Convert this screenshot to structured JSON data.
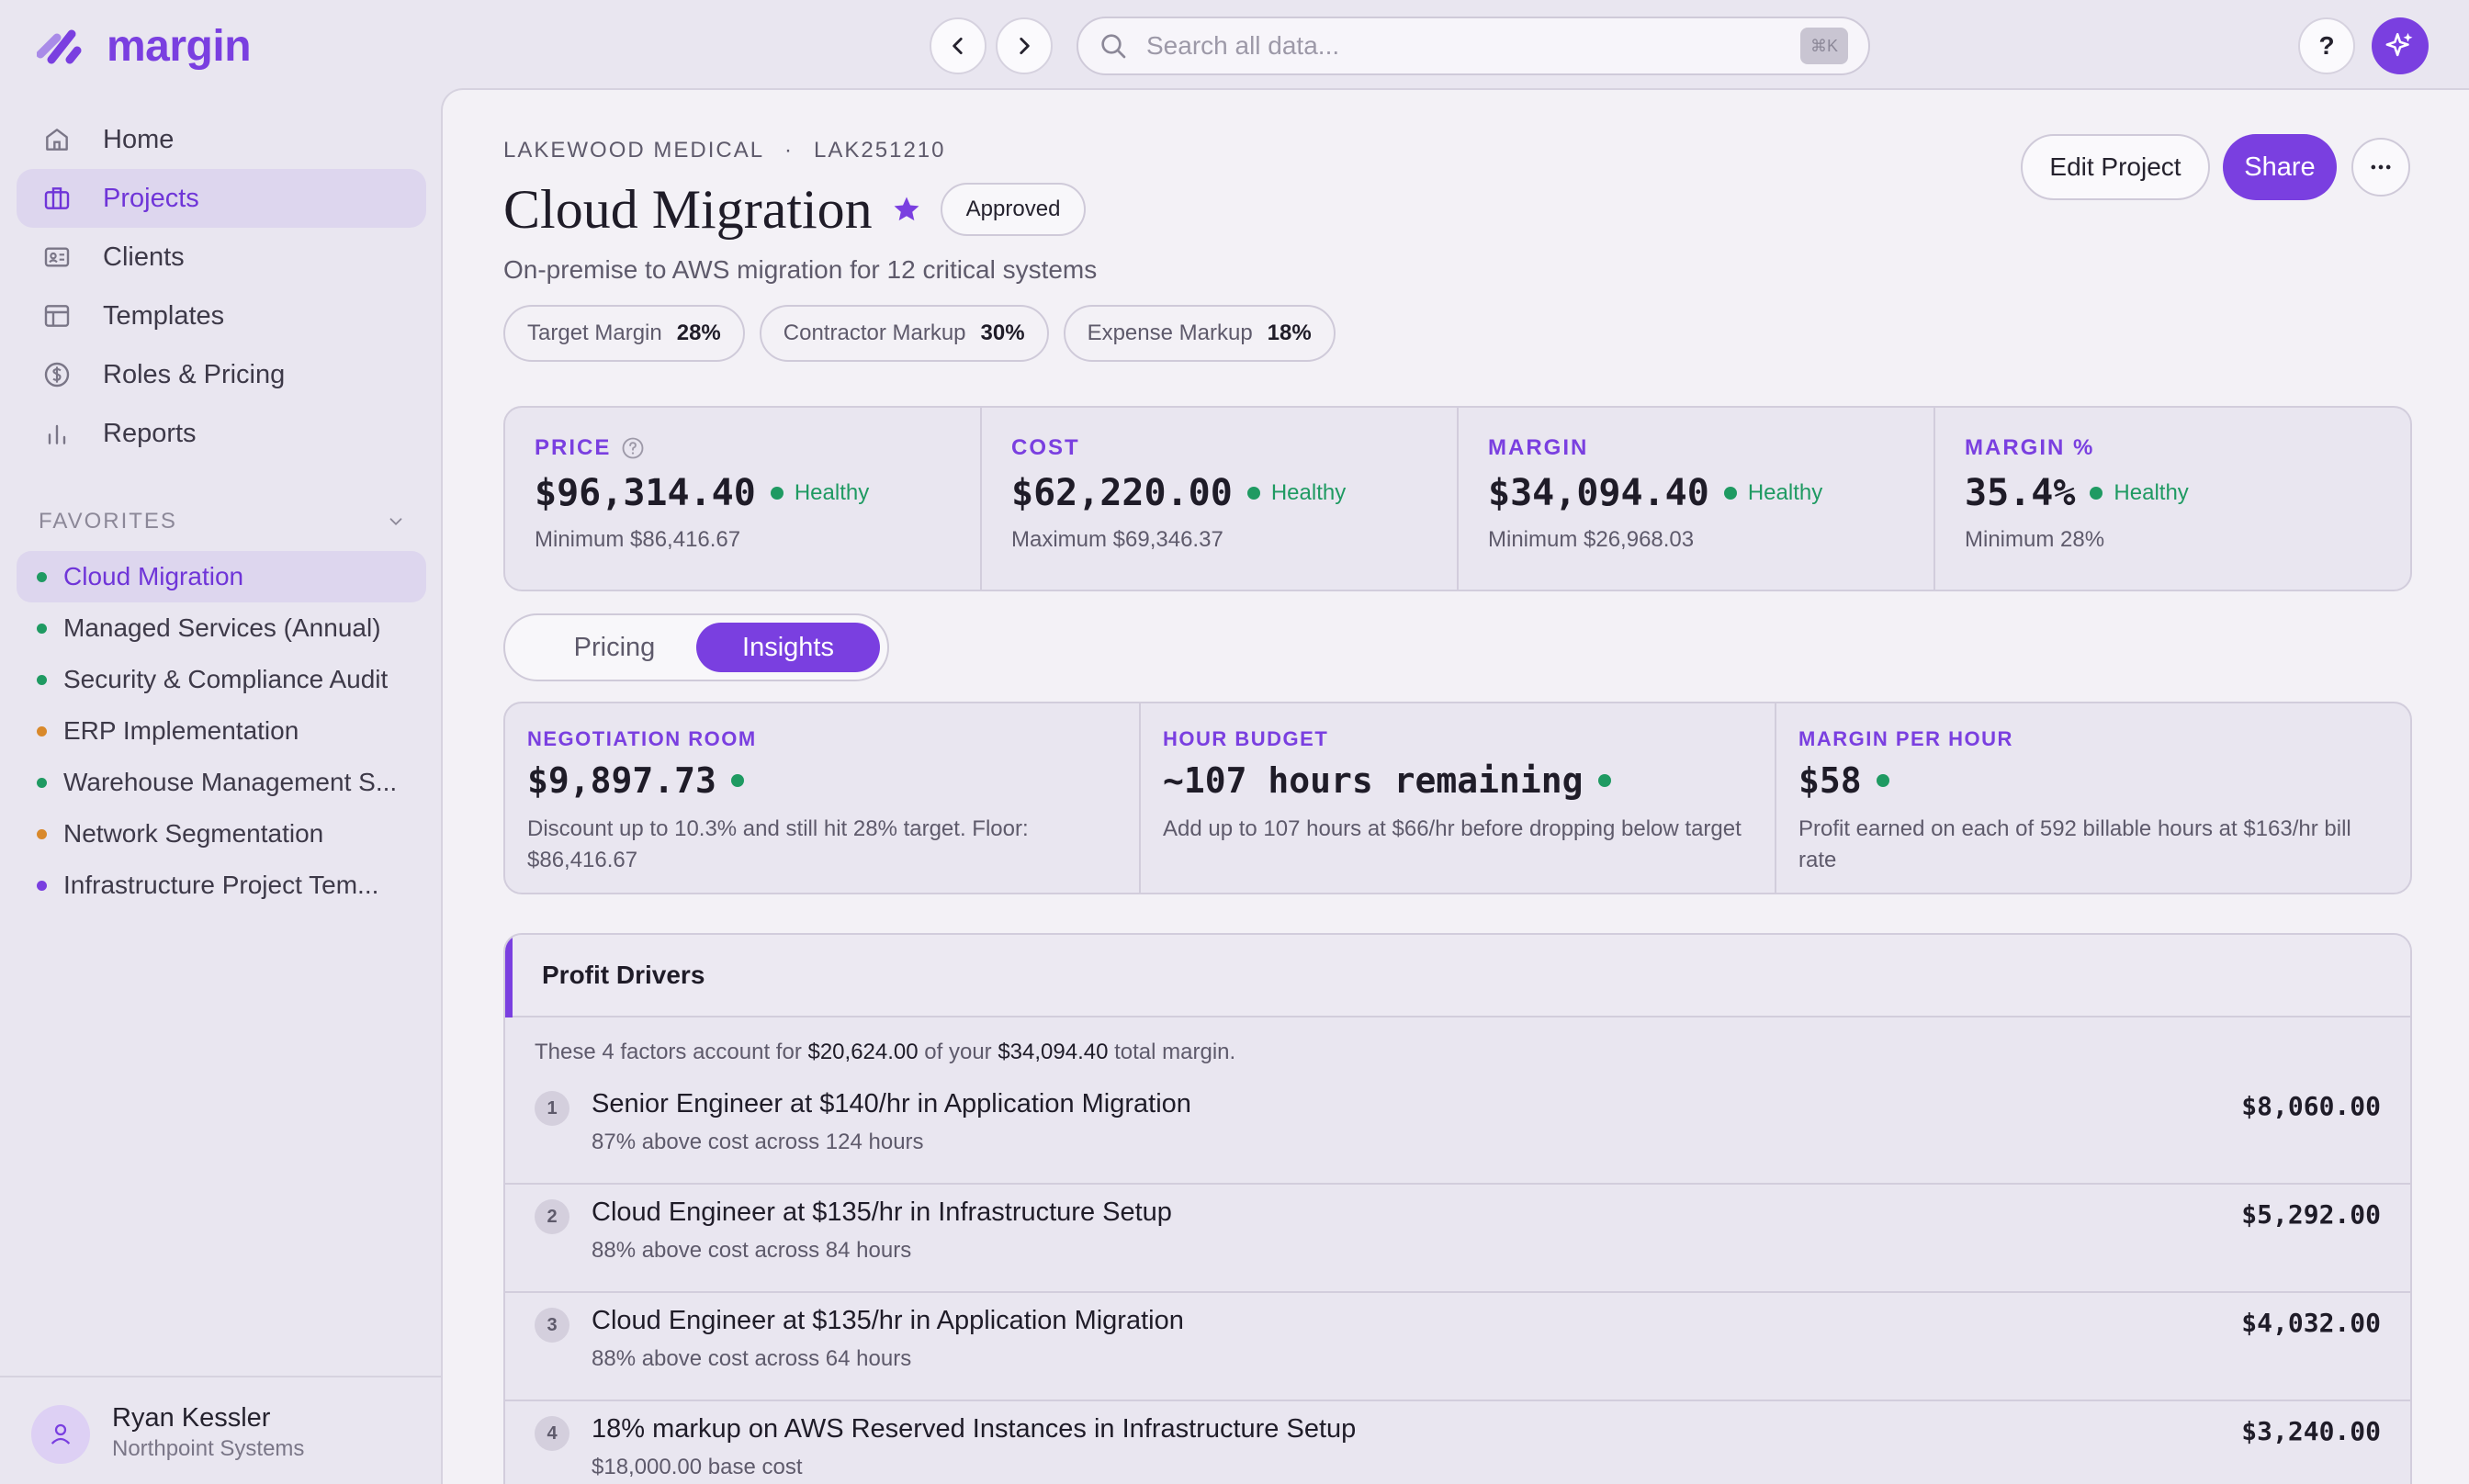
{
  "app": {
    "name": "margin"
  },
  "search": {
    "placeholder": "Search all data...",
    "shortcut": "⌘K"
  },
  "help": {
    "label": "?"
  },
  "sidebar": {
    "items": [
      {
        "label": "Home",
        "icon": "home-icon"
      },
      {
        "label": "Projects",
        "icon": "briefcase-icon",
        "active": true
      },
      {
        "label": "Clients",
        "icon": "id-card-icon"
      },
      {
        "label": "Templates",
        "icon": "layout-icon"
      },
      {
        "label": "Roles & Pricing",
        "icon": "dollar-circle-icon"
      },
      {
        "label": "Reports",
        "icon": "bar-chart-icon"
      }
    ],
    "favorites_label": "FAVORITES",
    "favorites": [
      {
        "label": "Cloud Migration",
        "color": "#1f9a62",
        "active": true
      },
      {
        "label": "Managed Services (Annual)",
        "color": "#1f9a62"
      },
      {
        "label": "Security & Compliance Audit",
        "color": "#1f9a62"
      },
      {
        "label": "ERP Implementation",
        "color": "#d9892b"
      },
      {
        "label": "Warehouse Management S...",
        "color": "#1f9a62"
      },
      {
        "label": "Network Segmentation",
        "color": "#d9892b"
      },
      {
        "label": "Infrastructure Project Tem...",
        "color": "#7a3fe0"
      }
    ],
    "user": {
      "name": "Ryan Kessler",
      "org": "Northpoint Systems"
    }
  },
  "project": {
    "client": "LAKEWOOD MEDICAL",
    "separator": "·",
    "code": "LAK251210",
    "title": "Cloud Migration",
    "status": "Approved",
    "description": "On-premise to AWS migration for 12 critical systems",
    "chips": [
      {
        "label": "Target Margin",
        "value": "28%"
      },
      {
        "label": "Contractor Markup",
        "value": "30%"
      },
      {
        "label": "Expense Markup",
        "value": "18%"
      }
    ],
    "actions": {
      "edit": "Edit Project",
      "share": "Share"
    }
  },
  "stats": [
    {
      "label": "PRICE",
      "value": "$96,314.40",
      "status": "Healthy",
      "sub": "Minimum $86,416.67",
      "help": true
    },
    {
      "label": "COST",
      "value": "$62,220.00",
      "status": "Healthy",
      "sub": "Maximum $69,346.37"
    },
    {
      "label": "MARGIN",
      "value": "$34,094.40",
      "status": "Healthy",
      "sub": "Minimum $26,968.03"
    },
    {
      "label": "MARGIN %",
      "value": "35.4%",
      "status": "Healthy",
      "sub": "Minimum 28%"
    }
  ],
  "tabs": {
    "pricing": "Pricing",
    "insights": "Insights",
    "active": "Insights"
  },
  "insights": [
    {
      "label": "NEGOTIATION ROOM",
      "value": "$9,897.73",
      "desc": "Discount up to 10.3% and still hit 28% target. Floor: $86,416.67"
    },
    {
      "label": "HOUR BUDGET",
      "value": "~107 hours remaining",
      "desc": "Add up to 107 hours at $66/hr before dropping below target"
    },
    {
      "label": "MARGIN PER HOUR",
      "value": "$58",
      "desc": "Profit earned on each of 592 billable hours at $163/hr bill rate"
    }
  ],
  "drivers": {
    "title": "Profit Drivers",
    "summary_prefix": "These 4 factors account for",
    "summary_amount": "$20,624.00",
    "summary_mid": "of your",
    "summary_total": "$34,094.40",
    "summary_suffix": "total margin.",
    "items": [
      {
        "n": "1",
        "title": "Senior Engineer at $140/hr in Application Migration",
        "sub": "87% above cost across 124 hours",
        "amount": "$8,060.00"
      },
      {
        "n": "2",
        "title": "Cloud Engineer at $135/hr in Infrastructure Setup",
        "sub": "88% above cost across 84 hours",
        "amount": "$5,292.00"
      },
      {
        "n": "3",
        "title": "Cloud Engineer at $135/hr in Application Migration",
        "sub": "88% above cost across 64 hours",
        "amount": "$4,032.00"
      },
      {
        "n": "4",
        "title": "18% markup on AWS Reserved Instances in Infrastructure Setup",
        "sub": "$18,000.00 base cost",
        "amount": "$3,240.00"
      }
    ]
  },
  "colors": {
    "accent": "#7a3fe0",
    "healthy": "#1f9a62",
    "warning": "#d9892b"
  }
}
